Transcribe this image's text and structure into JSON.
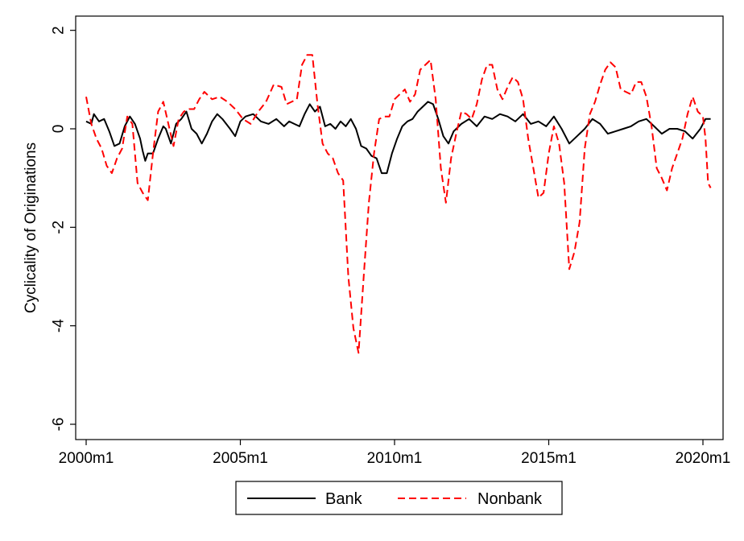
{
  "chart_data": {
    "type": "line",
    "title": "",
    "xlabel": "",
    "ylabel": "Cyclicality of Originations",
    "xlim": [
      "2000m1",
      "2020m4"
    ],
    "ylim": [
      -6,
      2
    ],
    "grid": false,
    "legend_position": "bottom",
    "x_ticks": [
      "2000m1",
      "2005m1",
      "2010m1",
      "2015m1",
      "2020m1"
    ],
    "y_ticks": [
      "2",
      "0",
      "-2",
      "-4",
      "-6"
    ],
    "series": [
      {
        "name": "Bank",
        "color": "#000000",
        "style": "solid",
        "points": [
          [
            "2000m1",
            0.15
          ],
          [
            "2000m3",
            0.1
          ],
          [
            "2000m4",
            0.3
          ],
          [
            "2000m6",
            0.15
          ],
          [
            "2000m8",
            0.2
          ],
          [
            "2000m10",
            -0.05
          ],
          [
            "2000m12",
            -0.35
          ],
          [
            "2001m2",
            -0.3
          ],
          [
            "2001m4",
            0.05
          ],
          [
            "2001m6",
            0.25
          ],
          [
            "2001m8",
            0.1
          ],
          [
            "2001m10",
            -0.2
          ],
          [
            "2001m11",
            -0.45
          ],
          [
            "2001m12",
            -0.65
          ],
          [
            "2002m1",
            -0.5
          ],
          [
            "2002m3",
            -0.5
          ],
          [
            "2002m5",
            -0.2
          ],
          [
            "2002m7",
            0.05
          ],
          [
            "2002m8",
            0.0
          ],
          [
            "2002m10",
            -0.3
          ],
          [
            "2002m12",
            0.1
          ],
          [
            "2003m2",
            0.2
          ],
          [
            "2003m4",
            0.35
          ],
          [
            "2003m6",
            0.0
          ],
          [
            "2003m8",
            -0.1
          ],
          [
            "2003m10",
            -0.3
          ],
          [
            "2003m12",
            -0.1
          ],
          [
            "2004m2",
            0.15
          ],
          [
            "2004m4",
            0.3
          ],
          [
            "2004m6",
            0.2
          ],
          [
            "2004m9",
            0.0
          ],
          [
            "2004m11",
            -0.15
          ],
          [
            "2005m1",
            0.15
          ],
          [
            "2005m3",
            0.25
          ],
          [
            "2005m6",
            0.3
          ],
          [
            "2005m9",
            0.15
          ],
          [
            "2005m12",
            0.1
          ],
          [
            "2006m3",
            0.2
          ],
          [
            "2006m6",
            0.05
          ],
          [
            "2006m8",
            0.15
          ],
          [
            "2006m10",
            0.1
          ],
          [
            "2006m12",
            0.05
          ],
          [
            "2007m2",
            0.3
          ],
          [
            "2007m4",
            0.5
          ],
          [
            "2007m6",
            0.35
          ],
          [
            "2007m8",
            0.45
          ],
          [
            "2007m10",
            0.05
          ],
          [
            "2007m12",
            0.1
          ],
          [
            "2008m2",
            0.0
          ],
          [
            "2008m4",
            0.15
          ],
          [
            "2008m6",
            0.05
          ],
          [
            "2008m8",
            0.2
          ],
          [
            "2008m10",
            0.0
          ],
          [
            "2008m12",
            -0.35
          ],
          [
            "2009m2",
            -0.4
          ],
          [
            "2009m4",
            -0.55
          ],
          [
            "2009m6",
            -0.6
          ],
          [
            "2009m8",
            -0.9
          ],
          [
            "2009m10",
            -0.9
          ],
          [
            "2009m12",
            -0.5
          ],
          [
            "2010m2",
            -0.2
          ],
          [
            "2010m4",
            0.05
          ],
          [
            "2010m6",
            0.15
          ],
          [
            "2010m8",
            0.2
          ],
          [
            "2010m10",
            0.35
          ],
          [
            "2010m12",
            0.45
          ],
          [
            "2011m2",
            0.55
          ],
          [
            "2011m4",
            0.5
          ],
          [
            "2011m6",
            0.2
          ],
          [
            "2011m8",
            -0.15
          ],
          [
            "2011m10",
            -0.3
          ],
          [
            "2011m12",
            -0.05
          ],
          [
            "2012m3",
            0.1
          ],
          [
            "2012m6",
            0.2
          ],
          [
            "2012m9",
            0.05
          ],
          [
            "2012m12",
            0.25
          ],
          [
            "2013m3",
            0.2
          ],
          [
            "2013m6",
            0.3
          ],
          [
            "2013m9",
            0.25
          ],
          [
            "2013m12",
            0.15
          ],
          [
            "2014m3",
            0.3
          ],
          [
            "2014m6",
            0.1
          ],
          [
            "2014m9",
            0.15
          ],
          [
            "2014m12",
            0.05
          ],
          [
            "2015m3",
            0.25
          ],
          [
            "2015m6",
            0.0
          ],
          [
            "2015m9",
            -0.3
          ],
          [
            "2015m12",
            -0.15
          ],
          [
            "2016m3",
            0.0
          ],
          [
            "2016m6",
            0.2
          ],
          [
            "2016m9",
            0.1
          ],
          [
            "2016m12",
            -0.1
          ],
          [
            "2017m3",
            -0.05
          ],
          [
            "2017m6",
            0.0
          ],
          [
            "2017m9",
            0.05
          ],
          [
            "2017m12",
            0.15
          ],
          [
            "2018m3",
            0.2
          ],
          [
            "2018m6",
            0.05
          ],
          [
            "2018m9",
            -0.1
          ],
          [
            "2018m12",
            0.0
          ],
          [
            "2019m3",
            0.0
          ],
          [
            "2019m6",
            -0.05
          ],
          [
            "2019m9",
            -0.2
          ],
          [
            "2019m12",
            0.0
          ],
          [
            "2020m2",
            0.2
          ],
          [
            "2020m4",
            0.2
          ]
        ]
      },
      {
        "name": "Nonbank",
        "color": "#ff0000",
        "style": "dashed",
        "points": [
          [
            "2000m1",
            0.65
          ],
          [
            "2000m3",
            0.1
          ],
          [
            "2000m5",
            -0.2
          ],
          [
            "2000m7",
            -0.4
          ],
          [
            "2000m9",
            -0.75
          ],
          [
            "2000m11",
            -0.9
          ],
          [
            "2001m1",
            -0.6
          ],
          [
            "2001m3",
            -0.4
          ],
          [
            "2001m5",
            0.25
          ],
          [
            "2001m7",
            0.1
          ],
          [
            "2001m9",
            -1.1
          ],
          [
            "2001m11",
            -1.3
          ],
          [
            "2002m1",
            -1.45
          ],
          [
            "2002m3",
            -0.5
          ],
          [
            "2002m5",
            0.35
          ],
          [
            "2002m7",
            0.55
          ],
          [
            "2002m9",
            0.1
          ],
          [
            "2002m11",
            -0.35
          ],
          [
            "2003m1",
            0.2
          ],
          [
            "2003m3",
            0.35
          ],
          [
            "2003m5",
            0.4
          ],
          [
            "2003m7",
            0.4
          ],
          [
            "2003m9",
            0.6
          ],
          [
            "2003m11",
            0.75
          ],
          [
            "2004m2",
            0.6
          ],
          [
            "2004m5",
            0.65
          ],
          [
            "2004m8",
            0.55
          ],
          [
            "2004m11",
            0.4
          ],
          [
            "2005m2",
            0.2
          ],
          [
            "2005m5",
            0.1
          ],
          [
            "2005m8",
            0.35
          ],
          [
            "2005m11",
            0.55
          ],
          [
            "2006m2",
            0.9
          ],
          [
            "2006m5",
            0.85
          ],
          [
            "2006m7",
            0.5
          ],
          [
            "2006m9",
            0.55
          ],
          [
            "2006m11",
            0.6
          ],
          [
            "2007m1",
            1.3
          ],
          [
            "2007m3",
            1.5
          ],
          [
            "2007m5",
            1.5
          ],
          [
            "2007m7",
            0.5
          ],
          [
            "2007m9",
            -0.3
          ],
          [
            "2007m11",
            -0.5
          ],
          [
            "2008m1",
            -0.6
          ],
          [
            "2008m3",
            -0.9
          ],
          [
            "2008m5",
            -1.05
          ],
          [
            "2008m7",
            -3.0
          ],
          [
            "2008m9",
            -4.05
          ],
          [
            "2008m11",
            -4.55
          ],
          [
            "2009m1",
            -3.0
          ],
          [
            "2009m3",
            -1.5
          ],
          [
            "2009m5",
            -0.5
          ],
          [
            "2009m7",
            0.2
          ],
          [
            "2009m9",
            0.25
          ],
          [
            "2009m11",
            0.25
          ],
          [
            "2010m1",
            0.6
          ],
          [
            "2010m3",
            0.7
          ],
          [
            "2010m5",
            0.8
          ],
          [
            "2010m7",
            0.55
          ],
          [
            "2010m9",
            0.7
          ],
          [
            "2010m11",
            1.2
          ],
          [
            "2011m1",
            1.3
          ],
          [
            "2011m3",
            1.4
          ],
          [
            "2011m5",
            0.6
          ],
          [
            "2011m7",
            -0.8
          ],
          [
            "2011m9",
            -1.5
          ],
          [
            "2011m11",
            -0.6
          ],
          [
            "2012m1",
            -0.1
          ],
          [
            "2012m3",
            0.35
          ],
          [
            "2012m5",
            0.3
          ],
          [
            "2012m7",
            0.2
          ],
          [
            "2012m9",
            0.5
          ],
          [
            "2012m11",
            1.0
          ],
          [
            "2013m1",
            1.3
          ],
          [
            "2013m3",
            1.3
          ],
          [
            "2013m5",
            0.8
          ],
          [
            "2013m7",
            0.6
          ],
          [
            "2013m9",
            0.85
          ],
          [
            "2013m11",
            1.05
          ],
          [
            "2014m1",
            0.95
          ],
          [
            "2014m3",
            0.6
          ],
          [
            "2014m5",
            -0.2
          ],
          [
            "2014m7",
            -0.8
          ],
          [
            "2014m9",
            -1.4
          ],
          [
            "2014m11",
            -1.3
          ],
          [
            "2015m1",
            -0.5
          ],
          [
            "2015m3",
            0.05
          ],
          [
            "2015m5",
            -0.3
          ],
          [
            "2015m7",
            -1.1
          ],
          [
            "2015m9",
            -2.85
          ],
          [
            "2015m11",
            -2.5
          ],
          [
            "2016m1",
            -1.9
          ],
          [
            "2016m3",
            -0.4
          ],
          [
            "2016m5",
            0.3
          ],
          [
            "2016m7",
            0.55
          ],
          [
            "2016m9",
            0.9
          ],
          [
            "2016m11",
            1.2
          ],
          [
            "2017m1",
            1.35
          ],
          [
            "2017m3",
            1.25
          ],
          [
            "2017m5",
            0.8
          ],
          [
            "2017m7",
            0.75
          ],
          [
            "2017m9",
            0.7
          ],
          [
            "2017m11",
            0.95
          ],
          [
            "2018m1",
            0.95
          ],
          [
            "2018m3",
            0.65
          ],
          [
            "2018m5",
            0.05
          ],
          [
            "2018m7",
            -0.8
          ],
          [
            "2018m9",
            -1.0
          ],
          [
            "2018m11",
            -1.25
          ],
          [
            "2019m1",
            -0.8
          ],
          [
            "2019m3",
            -0.5
          ],
          [
            "2019m5",
            -0.2
          ],
          [
            "2019m7",
            0.3
          ],
          [
            "2019m9",
            0.65
          ],
          [
            "2019m11",
            0.35
          ],
          [
            "2020m1",
            0.25
          ],
          [
            "2020m2",
            -0.2
          ],
          [
            "2020m3",
            -1.1
          ],
          [
            "2020m4",
            -1.2
          ]
        ]
      }
    ]
  }
}
